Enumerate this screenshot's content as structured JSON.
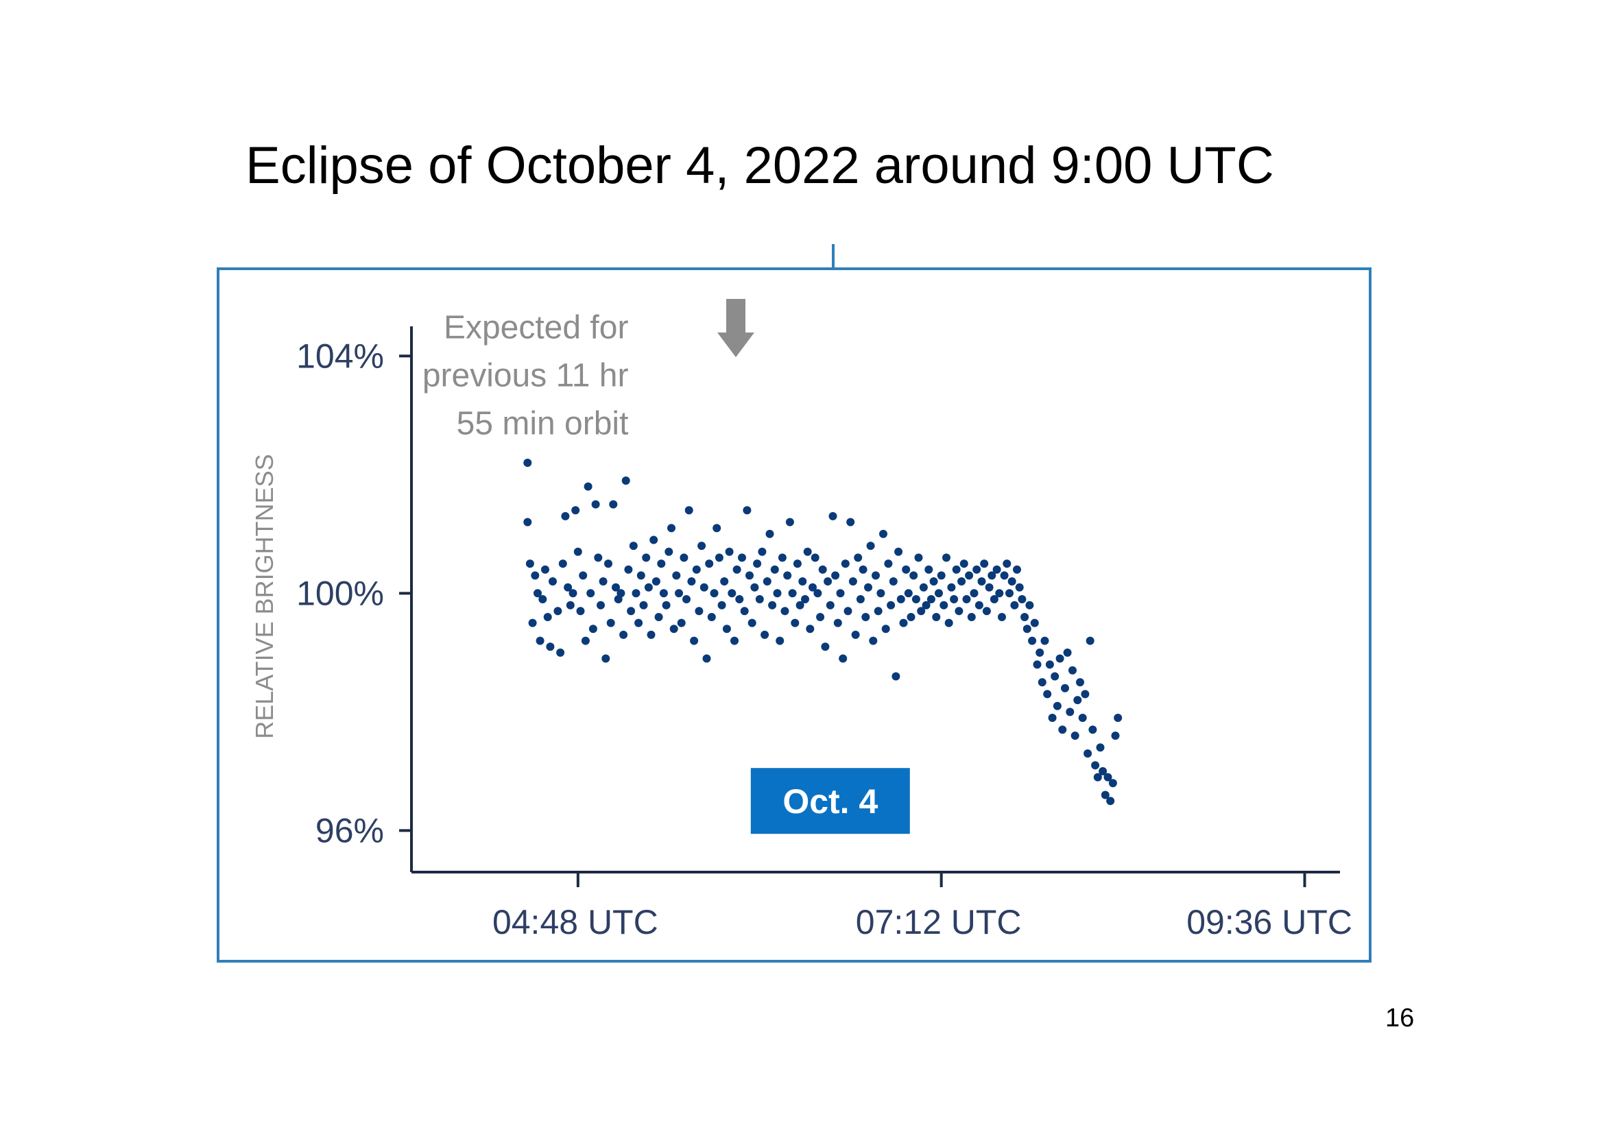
{
  "slide": {
    "title": "Eclipse of October 4, 2022 around 9:00 UTC",
    "page_number": "16"
  },
  "colors": {
    "frame": "#2f7fb8",
    "points": "#0b3a78",
    "axis": "#1d2a44",
    "tick_text": "#2e3f63",
    "annotation": "#8c8c8c",
    "badge_bg": "#0a72c4",
    "badge_text": "#ffffff"
  },
  "icons": {
    "arrow": "arrow-down-icon"
  },
  "chart_data": {
    "type": "scatter",
    "title": "",
    "xlabel": "",
    "ylabel": "RELATIVE BRIGHTNESS",
    "xlim": [
      "03:42",
      "09:50"
    ],
    "ylim": [
      95.3,
      104.5
    ],
    "grid": false,
    "x_ticks": [
      "04:48",
      "07:12",
      "09:36"
    ],
    "x_tick_labels": [
      "04:48 UTC",
      "07:12 UTC",
      "09:36 UTC"
    ],
    "y_ticks": [
      96,
      100,
      104
    ],
    "y_tick_labels": [
      "96%",
      "100%",
      "104%"
    ],
    "annotation": {
      "lines": [
        "Expected for",
        "previous 11 hr",
        "55 min orbit"
      ],
      "x": "05:08",
      "y": 104.3
    },
    "label_box": {
      "text": "Oct. 4",
      "x": "06:28",
      "y": 96.5
    },
    "points": [
      [
        "04:28",
        102.2
      ],
      [
        "04:28",
        101.2
      ],
      [
        "04:29",
        100.5
      ],
      [
        "04:30",
        99.5
      ],
      [
        "04:31",
        100.3
      ],
      [
        "04:32",
        100.0
      ],
      [
        "04:33",
        99.2
      ],
      [
        "04:34",
        99.9
      ],
      [
        "04:35",
        100.4
      ],
      [
        "04:36",
        99.6
      ],
      [
        "04:37",
        99.1
      ],
      [
        "04:38",
        100.2
      ],
      [
        "04:40",
        99.7
      ],
      [
        "04:41",
        99.0
      ],
      [
        "04:42",
        100.5
      ],
      [
        "04:43",
        101.3
      ],
      [
        "04:44",
        100.1
      ],
      [
        "04:45",
        99.8
      ],
      [
        "04:46",
        100.0
      ],
      [
        "04:47",
        101.4
      ],
      [
        "04:48",
        100.7
      ],
      [
        "04:49",
        99.7
      ],
      [
        "04:50",
        100.3
      ],
      [
        "04:51",
        99.2
      ],
      [
        "04:52",
        101.8
      ],
      [
        "04:53",
        100.0
      ],
      [
        "04:54",
        99.4
      ],
      [
        "04:55",
        101.5
      ],
      [
        "04:56",
        100.6
      ],
      [
        "04:57",
        99.8
      ],
      [
        "04:58",
        100.2
      ],
      [
        "04:59",
        98.9
      ],
      [
        "05:00",
        100.5
      ],
      [
        "05:01",
        99.5
      ],
      [
        "05:02",
        101.5
      ],
      [
        "05:03",
        100.1
      ],
      [
        "05:04",
        99.9
      ],
      [
        "05:05",
        100.0
      ],
      [
        "05:06",
        99.3
      ],
      [
        "05:07",
        101.9
      ],
      [
        "05:08",
        100.4
      ],
      [
        "05:09",
        99.7
      ],
      [
        "05:10",
        100.8
      ],
      [
        "05:11",
        100.0
      ],
      [
        "05:12",
        99.5
      ],
      [
        "05:13",
        100.3
      ],
      [
        "05:14",
        99.8
      ],
      [
        "05:15",
        100.6
      ],
      [
        "05:16",
        100.1
      ],
      [
        "05:17",
        99.3
      ],
      [
        "05:18",
        100.9
      ],
      [
        "05:19",
        100.2
      ],
      [
        "05:20",
        99.6
      ],
      [
        "05:21",
        100.5
      ],
      [
        "05:22",
        100.0
      ],
      [
        "05:23",
        99.8
      ],
      [
        "05:24",
        100.7
      ],
      [
        "05:25",
        101.1
      ],
      [
        "05:26",
        99.4
      ],
      [
        "05:27",
        100.3
      ],
      [
        "05:28",
        100.0
      ],
      [
        "05:29",
        99.5
      ],
      [
        "05:30",
        100.6
      ],
      [
        "05:31",
        99.9
      ],
      [
        "05:32",
        101.4
      ],
      [
        "05:33",
        100.2
      ],
      [
        "05:34",
        99.2
      ],
      [
        "05:35",
        100.4
      ],
      [
        "05:36",
        99.7
      ],
      [
        "05:37",
        100.8
      ],
      [
        "05:38",
        100.1
      ],
      [
        "05:39",
        98.9
      ],
      [
        "05:40",
        100.5
      ],
      [
        "05:41",
        99.6
      ],
      [
        "05:42",
        100.0
      ],
      [
        "05:43",
        101.1
      ],
      [
        "05:44",
        100.6
      ],
      [
        "05:45",
        99.8
      ],
      [
        "05:46",
        100.2
      ],
      [
        "05:47",
        99.4
      ],
      [
        "05:48",
        100.7
      ],
      [
        "05:49",
        100.0
      ],
      [
        "05:50",
        99.2
      ],
      [
        "05:51",
        100.4
      ],
      [
        "05:52",
        99.9
      ],
      [
        "05:53",
        100.6
      ],
      [
        "05:54",
        99.7
      ],
      [
        "05:55",
        101.4
      ],
      [
        "05:56",
        100.3
      ],
      [
        "05:57",
        99.5
      ],
      [
        "05:58",
        100.1
      ],
      [
        "05:59",
        100.5
      ],
      [
        "06:00",
        99.9
      ],
      [
        "06:01",
        100.7
      ],
      [
        "06:02",
        99.3
      ],
      [
        "06:03",
        100.2
      ],
      [
        "06:04",
        101.0
      ],
      [
        "06:05",
        99.8
      ],
      [
        "06:06",
        100.4
      ],
      [
        "06:07",
        100.0
      ],
      [
        "06:08",
        99.2
      ],
      [
        "06:09",
        100.6
      ],
      [
        "06:10",
        99.7
      ],
      [
        "06:11",
        100.3
      ],
      [
        "06:12",
        101.2
      ],
      [
        "06:13",
        100.0
      ],
      [
        "06:14",
        99.5
      ],
      [
        "06:15",
        100.5
      ],
      [
        "06:16",
        99.8
      ],
      [
        "06:17",
        100.2
      ],
      [
        "06:18",
        99.9
      ],
      [
        "06:19",
        100.7
      ],
      [
        "06:20",
        99.4
      ],
      [
        "06:21",
        100.1
      ],
      [
        "06:22",
        100.6
      ],
      [
        "06:23",
        100.0
      ],
      [
        "06:24",
        99.6
      ],
      [
        "06:25",
        100.4
      ],
      [
        "06:26",
        99.1
      ],
      [
        "06:27",
        100.2
      ],
      [
        "06:28",
        99.8
      ],
      [
        "06:29",
        101.3
      ],
      [
        "06:30",
        100.3
      ],
      [
        "06:31",
        99.5
      ],
      [
        "06:32",
        100.0
      ],
      [
        "06:33",
        98.9
      ],
      [
        "06:34",
        100.5
      ],
      [
        "06:35",
        99.7
      ],
      [
        "06:36",
        101.2
      ],
      [
        "06:37",
        100.2
      ],
      [
        "06:38",
        99.3
      ],
      [
        "06:39",
        100.6
      ],
      [
        "06:40",
        99.9
      ],
      [
        "06:41",
        100.4
      ],
      [
        "06:42",
        99.6
      ],
      [
        "06:43",
        100.1
      ],
      [
        "06:44",
        100.8
      ],
      [
        "06:45",
        99.2
      ],
      [
        "06:46",
        100.3
      ],
      [
        "06:47",
        99.7
      ],
      [
        "06:48",
        100.0
      ],
      [
        "06:49",
        101.0
      ],
      [
        "06:50",
        99.4
      ],
      [
        "06:51",
        100.5
      ],
      [
        "06:52",
        99.8
      ],
      [
        "06:53",
        100.2
      ],
      [
        "06:54",
        98.6
      ],
      [
        "06:55",
        100.7
      ],
      [
        "06:56",
        99.9
      ],
      [
        "06:57",
        99.5
      ],
      [
        "06:58",
        100.4
      ],
      [
        "06:59",
        100.0
      ],
      [
        "07:00",
        99.6
      ],
      [
        "07:01",
        100.3
      ],
      [
        "07:02",
        99.9
      ],
      [
        "07:03",
        100.6
      ],
      [
        "07:04",
        99.7
      ],
      [
        "07:05",
        100.1
      ],
      [
        "07:06",
        99.8
      ],
      [
        "07:07",
        100.4
      ],
      [
        "07:08",
        99.9
      ],
      [
        "07:09",
        100.2
      ],
      [
        "07:10",
        99.6
      ],
      [
        "07:11",
        100.0
      ],
      [
        "07:12",
        100.3
      ],
      [
        "07:13",
        99.8
      ],
      [
        "07:14",
        100.6
      ],
      [
        "07:15",
        99.5
      ],
      [
        "07:16",
        100.1
      ],
      [
        "07:17",
        99.9
      ],
      [
        "07:18",
        100.4
      ],
      [
        "07:19",
        99.7
      ],
      [
        "07:20",
        100.2
      ],
      [
        "07:21",
        100.5
      ],
      [
        "07:22",
        99.9
      ],
      [
        "07:23",
        100.3
      ],
      [
        "07:24",
        99.6
      ],
      [
        "07:25",
        100.0
      ],
      [
        "07:26",
        100.4
      ],
      [
        "07:27",
        99.8
      ],
      [
        "07:28",
        100.2
      ],
      [
        "07:29",
        100.5
      ],
      [
        "07:30",
        99.7
      ],
      [
        "07:31",
        100.1
      ],
      [
        "07:32",
        100.3
      ],
      [
        "07:33",
        99.9
      ],
      [
        "07:34",
        100.4
      ],
      [
        "07:35",
        100.0
      ],
      [
        "07:36",
        99.6
      ],
      [
        "07:37",
        100.3
      ],
      [
        "07:38",
        100.5
      ],
      [
        "07:39",
        100.0
      ],
      [
        "07:40",
        100.2
      ],
      [
        "07:41",
        99.8
      ],
      [
        "07:42",
        100.4
      ],
      [
        "07:43",
        100.1
      ],
      [
        "07:44",
        99.9
      ],
      [
        "07:45",
        99.6
      ],
      [
        "07:46",
        99.4
      ],
      [
        "07:47",
        99.8
      ],
      [
        "07:48",
        99.2
      ],
      [
        "07:49",
        99.5
      ],
      [
        "07:50",
        98.8
      ],
      [
        "07:51",
        99.0
      ],
      [
        "07:52",
        98.5
      ],
      [
        "07:53",
        99.2
      ],
      [
        "07:54",
        98.3
      ],
      [
        "07:55",
        98.8
      ],
      [
        "07:56",
        97.9
      ],
      [
        "07:57",
        98.6
      ],
      [
        "07:58",
        98.1
      ],
      [
        "07:59",
        98.9
      ],
      [
        "08:00",
        97.7
      ],
      [
        "08:01",
        98.4
      ],
      [
        "08:02",
        99.0
      ],
      [
        "08:03",
        98.0
      ],
      [
        "08:04",
        98.7
      ],
      [
        "08:05",
        97.6
      ],
      [
        "08:06",
        98.2
      ],
      [
        "08:07",
        98.5
      ],
      [
        "08:08",
        97.9
      ],
      [
        "08:09",
        98.3
      ],
      [
        "08:10",
        97.3
      ],
      [
        "08:11",
        99.2
      ],
      [
        "08:12",
        97.7
      ],
      [
        "08:13",
        97.1
      ],
      [
        "08:14",
        96.9
      ],
      [
        "08:15",
        97.4
      ],
      [
        "08:16",
        97.0
      ],
      [
        "08:17",
        96.6
      ],
      [
        "08:18",
        96.9
      ],
      [
        "08:19",
        96.5
      ],
      [
        "08:20",
        96.8
      ],
      [
        "08:21",
        97.6
      ],
      [
        "08:22",
        97.9
      ]
    ]
  }
}
